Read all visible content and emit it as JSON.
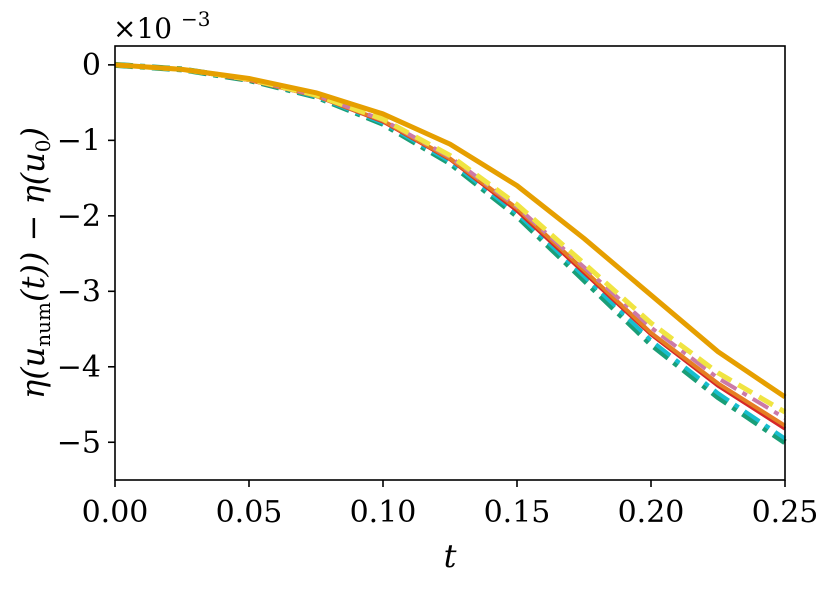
{
  "chart_data": {
    "type": "line",
    "title": "",
    "xlabel": "t",
    "ylabel": "η(u_num(t)) − η(u_0)",
    "ylabel_parts": {
      "eta1": "η(",
      "u": "u",
      "num_sub": "num",
      "t": "(t)) − η(",
      "u0": "u",
      "zero_sub": "0",
      "close": ")"
    },
    "y_multiplier": "×10−3",
    "y_multiplier_parts": {
      "base": "×10",
      "exp": "−3"
    },
    "xlim": [
      0.0,
      0.25
    ],
    "ylim": [
      -5.5,
      0.25
    ],
    "x_ticks": [
      0.0,
      0.05,
      0.1,
      0.15,
      0.2,
      0.25
    ],
    "x_tick_labels": [
      "0.00",
      "0.05",
      "0.10",
      "0.15",
      "0.20",
      "0.25"
    ],
    "y_ticks": [
      0,
      -1,
      -2,
      -3,
      -4,
      -5
    ],
    "y_tick_labels": [
      "0",
      "−1",
      "−2",
      "−3",
      "−4",
      "−5"
    ],
    "grid": false,
    "x": [
      0.0,
      0.025,
      0.05,
      0.075,
      0.1,
      0.125,
      0.15,
      0.175,
      0.2,
      0.225,
      0.25
    ],
    "series": [
      {
        "color": "#1a9e77",
        "style": "dashdot",
        "width": 6,
        "values": [
          0,
          -0.06,
          -0.2,
          -0.42,
          -0.78,
          -1.3,
          -2.0,
          -2.85,
          -3.7,
          -4.4,
          -5.0
        ]
      },
      {
        "color": "#17becf",
        "style": "dashdot",
        "width": 4,
        "values": [
          0,
          -0.06,
          -0.2,
          -0.42,
          -0.77,
          -1.28,
          -1.97,
          -2.8,
          -3.65,
          -4.35,
          -4.95
        ]
      },
      {
        "color": "#d62728",
        "style": "solid",
        "width": 4,
        "values": [
          0,
          -0.06,
          -0.2,
          -0.41,
          -0.75,
          -1.25,
          -1.93,
          -2.75,
          -3.57,
          -4.25,
          -4.82
        ]
      },
      {
        "color": "#e67e22",
        "style": "solid",
        "width": 4,
        "values": [
          0,
          -0.06,
          -0.2,
          -0.41,
          -0.74,
          -1.24,
          -1.9,
          -2.72,
          -3.55,
          -4.22,
          -4.78
        ]
      },
      {
        "color": "#cc79a7",
        "style": "dashdot",
        "width": 4,
        "values": [
          0,
          -0.06,
          -0.19,
          -0.4,
          -0.73,
          -1.22,
          -1.88,
          -2.68,
          -3.48,
          -4.15,
          -4.68
        ]
      },
      {
        "color": "#f0e442",
        "style": "dashed",
        "width": 5,
        "values": [
          0,
          -0.06,
          -0.19,
          -0.4,
          -0.72,
          -1.2,
          -1.85,
          -2.63,
          -3.42,
          -4.08,
          -4.6
        ]
      },
      {
        "color": "#e69f00",
        "style": "solid",
        "width": 5,
        "values": [
          0,
          -0.06,
          -0.18,
          -0.37,
          -0.65,
          -1.05,
          -1.6,
          -2.3,
          -3.05,
          -3.8,
          -4.4
        ]
      }
    ]
  }
}
